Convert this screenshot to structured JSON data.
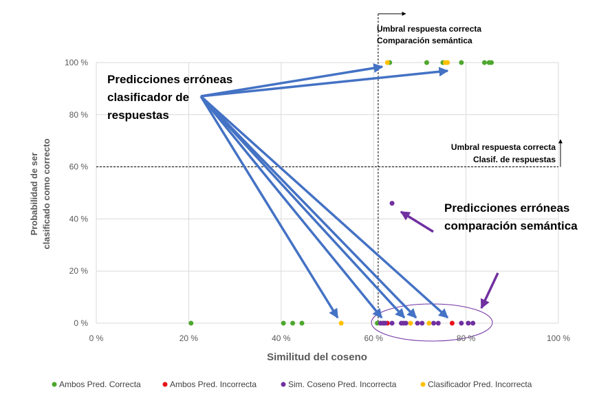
{
  "chart_data": {
    "type": "scatter",
    "xlabel": "Similitud del coseno",
    "ylabel_lines": [
      "Probabilidad de ser",
      "clasificado como correcto"
    ],
    "xlim": [
      0,
      100
    ],
    "ylim": [
      0,
      100
    ],
    "x_ticks": [
      0,
      20,
      40,
      60,
      80,
      100
    ],
    "y_ticks": [
      0,
      20,
      40,
      60,
      80,
      100
    ],
    "x_tick_labels": [
      "0 %",
      "20 %",
      "40 %",
      "60 %",
      "80 %",
      "100 %"
    ],
    "y_tick_labels": [
      "0 %",
      "20 %",
      "40 %",
      "60 %",
      "80 %",
      "100 %"
    ],
    "grid": true,
    "legend_position": "bottom",
    "series": [
      {
        "name": "Ambos Pred. Correcta",
        "color": "#4EA72E",
        "points": [
          [
            20.5,
            0
          ],
          [
            40.5,
            0
          ],
          [
            42.5,
            0
          ],
          [
            44.5,
            0
          ],
          [
            60.8,
            0
          ],
          [
            61.5,
            0
          ],
          [
            62.2,
            0
          ],
          [
            63.5,
            100
          ],
          [
            71.5,
            100
          ],
          [
            75,
            100
          ],
          [
            79,
            100
          ],
          [
            84,
            100
          ],
          [
            85,
            100
          ],
          [
            85.5,
            100
          ]
        ]
      },
      {
        "name": "Ambos Pred. Incorrecta",
        "color": "#E8101A",
        "points": [
          [
            63,
            0
          ],
          [
            77,
            0
          ]
        ]
      },
      {
        "name": "Sim. Coseno Pred. Incorrecta",
        "color": "#7030A0",
        "points": [
          [
            64,
            46
          ],
          [
            61.5,
            0
          ],
          [
            62,
            0
          ],
          [
            62.5,
            0
          ],
          [
            64,
            0
          ],
          [
            66,
            0
          ],
          [
            66.5,
            0
          ],
          [
            67,
            0
          ],
          [
            69.5,
            0
          ],
          [
            70.5,
            0
          ],
          [
            73,
            0
          ],
          [
            74,
            0
          ],
          [
            79,
            0
          ],
          [
            80.5,
            0
          ],
          [
            81.5,
            0
          ]
        ]
      },
      {
        "name": "Clasificador Pred. Incorrecta",
        "color": "#FFC000",
        "points": [
          [
            53,
            0
          ],
          [
            68,
            0
          ],
          [
            72,
            0
          ],
          [
            63,
            100
          ],
          [
            75.5,
            100
          ],
          [
            76,
            100
          ]
        ]
      }
    ],
    "threshold_lines": {
      "vertical_x": 61,
      "horizontal_y": 60
    },
    "annotations": {
      "classifier_errors_lines": [
        "Predicciones erróneas",
        "clasificador de",
        "respuestas"
      ],
      "semantic_errors_lines": [
        "Predicciones erróneas",
        "comparación semántica"
      ],
      "threshold_semantic_lines": [
        "Umbral respuesta correcta",
        "Comparación semántica"
      ],
      "threshold_classifier_lines": [
        "Umbral respuesta correcta",
        "Clasif. de respuestas"
      ]
    }
  },
  "colors": {
    "arrow_blue": "#4472C4",
    "highlight_purple": "#7030A0",
    "grid": "#D9D9D9",
    "axis_text": "#595959"
  }
}
